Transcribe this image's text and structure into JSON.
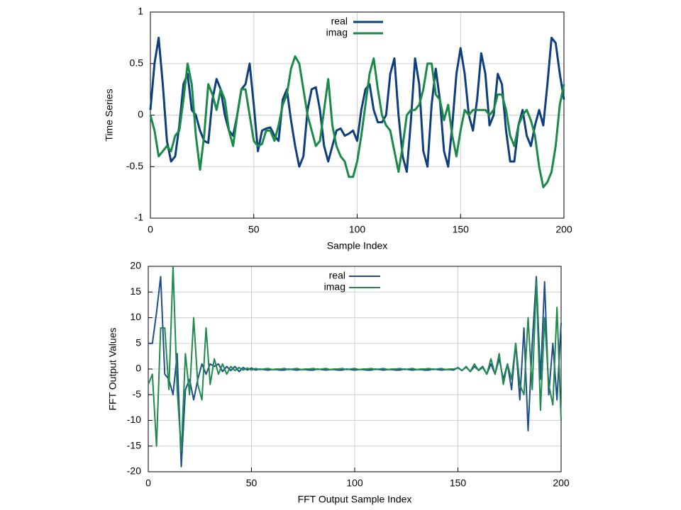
{
  "chart_data": [
    {
      "type": "line",
      "xlabel": "Sample Index",
      "ylabel": "Time Series",
      "x": [
        0,
        2,
        4,
        6,
        8,
        10,
        12,
        14,
        16,
        18,
        20,
        22,
        24,
        26,
        28,
        30,
        32,
        34,
        36,
        38,
        40,
        42,
        44,
        46,
        48,
        50,
        52,
        54,
        56,
        58,
        60,
        62,
        64,
        66,
        68,
        70,
        72,
        74,
        76,
        78,
        80,
        82,
        84,
        86,
        88,
        90,
        92,
        94,
        96,
        98,
        100,
        102,
        104,
        106,
        108,
        110,
        112,
        114,
        116,
        118,
        120,
        122,
        124,
        126,
        128,
        130,
        132,
        134,
        136,
        138,
        140,
        142,
        144,
        146,
        148,
        150,
        152,
        154,
        156,
        158,
        160,
        162,
        164,
        166,
        168,
        170,
        172,
        174,
        176,
        178,
        180,
        182,
        184,
        186,
        188,
        190,
        192,
        194,
        196,
        198,
        200
      ],
      "series": [
        {
          "name": "real",
          "color": "#0d3f7e",
          "values": [
            0.05,
            0.5,
            0.75,
            0.3,
            -0.25,
            -0.45,
            -0.4,
            -0.1,
            0.3,
            0.4,
            0.05,
            0,
            -0.15,
            -0.25,
            -0.27,
            0.15,
            0.35,
            0.25,
            0,
            -0.15,
            -0.2,
            0,
            0.25,
            0.3,
            0.5,
            0.1,
            -0.35,
            -0.15,
            -0.13,
            -0.12,
            -0.2,
            -0.25,
            0.15,
            0.25,
            -0.05,
            -0.3,
            -0.5,
            -0.4,
            0.05,
            0.25,
            0.27,
            0.05,
            -0.3,
            -0.45,
            -0.3,
            -0.15,
            -0.13,
            -0.2,
            -0.18,
            -0.15,
            -0.25,
            0.05,
            0.25,
            0.3,
            0.05,
            -0.07,
            -0.07,
            0,
            0.4,
            0.55,
            0,
            -0.4,
            -0.55,
            -0.05,
            0.55,
            0.3,
            -0.35,
            -0.5,
            0.1,
            0.45,
            0.15,
            -0.35,
            -0.5,
            -0.1,
            0.4,
            0.65,
            0.4,
            0,
            -0.15,
            0.15,
            0.6,
            0.4,
            -0.1,
            0,
            0.4,
            0.3,
            -0.15,
            -0.45,
            -0.45,
            -0.1,
            0.05,
            -0.2,
            -0.3,
            -0.1,
            0.05,
            -0.1,
            0.3,
            0.75,
            0.7,
            0.4,
            0.15
          ]
        },
        {
          "name": "imag",
          "color": "#1a8a48",
          "values": [
            0,
            -0.15,
            -0.4,
            -0.35,
            -0.3,
            -0.35,
            -0.2,
            -0.15,
            0.15,
            0.5,
            0.3,
            -0.2,
            -0.53,
            -0.2,
            0.3,
            0.2,
            0.05,
            0.25,
            0.15,
            -0.15,
            -0.3,
            0,
            0.25,
            0.25,
            0,
            -0.25,
            -0.3,
            -0.28,
            -0.15,
            -0.15,
            -0.25,
            -0.1,
            0.1,
            0.2,
            0.45,
            0.57,
            0.5,
            0.25,
            0,
            -0.15,
            -0.3,
            -0.25,
            0.05,
            0.35,
            -0.1,
            -0.3,
            -0.4,
            -0.45,
            -0.6,
            -0.6,
            -0.45,
            -0.2,
            0.1,
            0.4,
            0.55,
            0.25,
            0,
            -0.1,
            -0.15,
            -0.35,
            -0.55,
            -0.3,
            0,
            0.05,
            0.05,
            0.1,
            0.25,
            0.5,
            0.5,
            0.2,
            0.15,
            -0.05,
            0.1,
            -0.2,
            -0.4,
            -0.15,
            0.05,
            0,
            0.05,
            0.05,
            0.05,
            0.05,
            0,
            0.05,
            0.2,
            0.2,
            0.05,
            -0.2,
            -0.3,
            -0.1,
            0,
            0.05,
            -0.05,
            -0.2,
            -0.5,
            -0.7,
            -0.65,
            -0.55,
            -0.3,
            0.1,
            0.3
          ]
        }
      ],
      "xlim": [
        0,
        200
      ],
      "ylim": [
        -1,
        1
      ],
      "xticks": [
        0,
        50,
        100,
        150,
        200
      ],
      "yticks": [
        -1,
        -0.5,
        0,
        0.5,
        1
      ],
      "grid": true,
      "legend": "top-center"
    },
    {
      "type": "line",
      "xlabel": "FFT Output Sample Index",
      "ylabel": "FFT Output Values",
      "x": [
        0,
        2,
        4,
        6,
        8,
        10,
        12,
        14,
        16,
        18,
        20,
        22,
        24,
        26,
        28,
        30,
        32,
        34,
        36,
        38,
        40,
        42,
        44,
        46,
        48,
        50,
        52,
        54,
        56,
        58,
        60,
        62,
        64,
        66,
        68,
        70,
        72,
        74,
        76,
        78,
        80,
        82,
        84,
        86,
        88,
        90,
        92,
        94,
        96,
        98,
        100,
        102,
        104,
        106,
        108,
        110,
        112,
        114,
        116,
        118,
        120,
        122,
        124,
        126,
        128,
        130,
        132,
        134,
        136,
        138,
        140,
        142,
        144,
        146,
        148,
        150,
        152,
        154,
        156,
        158,
        160,
        162,
        164,
        166,
        168,
        170,
        172,
        174,
        176,
        178,
        180,
        182,
        184,
        186,
        188,
        190,
        192,
        194,
        196,
        198,
        200
      ],
      "series": [
        {
          "name": "real",
          "color": "#1f4e8c",
          "values": [
            5,
            5,
            11,
            18,
            -1,
            -2,
            -5,
            3,
            -19,
            -4,
            -2,
            -6,
            -2,
            1,
            -1,
            1,
            0.5,
            1,
            -0.5,
            0.5,
            -0.3,
            0.5,
            -0.5,
            0.3,
            -0.2,
            0.2,
            -0.2,
            0,
            -0.1,
            -0.2,
            -0.1,
            -0.1,
            -0.2,
            -0.2,
            0,
            -0.1,
            -0.2,
            -0.1,
            -0.1,
            -0.2,
            -0.2,
            0,
            -0.1,
            -0.2,
            -0.1,
            -0.1,
            -0.2,
            -0.2,
            0,
            -0.1,
            -0.2,
            -0.1,
            -0.1,
            -0.2,
            -0.2,
            0,
            -0.1,
            -0.2,
            -0.1,
            -0.1,
            -0.2,
            -0.2,
            0,
            -0.1,
            -0.2,
            -0.1,
            -0.1,
            -0.2,
            -0.2,
            0,
            -0.1,
            -0.2,
            -0.1,
            -0.1,
            -0.2,
            0.3,
            -0.3,
            0.4,
            -0.5,
            0.5,
            -0.2,
            0.5,
            -1,
            1,
            -1,
            2,
            -2,
            1,
            -4,
            5,
            -6,
            8,
            -12,
            5,
            18,
            -2,
            17,
            -5,
            5,
            -6,
            9
          ]
        },
        {
          "name": "imag",
          "color": "#1f8a4c",
          "values": [
            -3,
            -1,
            -15,
            8,
            8,
            -4,
            20,
            -4,
            -16,
            3,
            -5,
            10,
            -3,
            -6,
            8,
            -3,
            2,
            -1,
            1,
            -1,
            0.5,
            -0.3,
            0.3,
            -0.2,
            0.2,
            -0.2,
            0.1,
            -0.1,
            0,
            0.1,
            -0.1,
            0,
            0,
            0.1,
            -0.1,
            0,
            0.1,
            -0.1,
            0,
            0,
            0.1,
            -0.1,
            0,
            0.1,
            -0.1,
            0,
            0,
            0.1,
            -0.1,
            0,
            0.1,
            -0.1,
            0,
            0,
            0.1,
            -0.1,
            0,
            0.1,
            -0.1,
            0,
            0,
            0.1,
            -0.1,
            0,
            0.1,
            -0.1,
            0,
            0,
            0.1,
            -0.1,
            0,
            0.1,
            -0.1,
            0,
            0,
            0.2,
            -0.3,
            0.5,
            -0.5,
            1,
            -0.3,
            0.3,
            -1,
            2,
            -1,
            3,
            -3,
            1,
            -2,
            5,
            -3,
            -5,
            10,
            -4,
            17,
            -8,
            10,
            -3,
            -7,
            12,
            -10
          ]
        }
      ],
      "xlim": [
        0,
        200
      ],
      "ylim": [
        -20,
        20
      ],
      "xticks": [
        0,
        50,
        100,
        150,
        200
      ],
      "yticks": [
        -20,
        -15,
        -10,
        -5,
        0,
        5,
        10,
        15,
        20
      ],
      "grid": true,
      "legend": "top-center"
    }
  ]
}
